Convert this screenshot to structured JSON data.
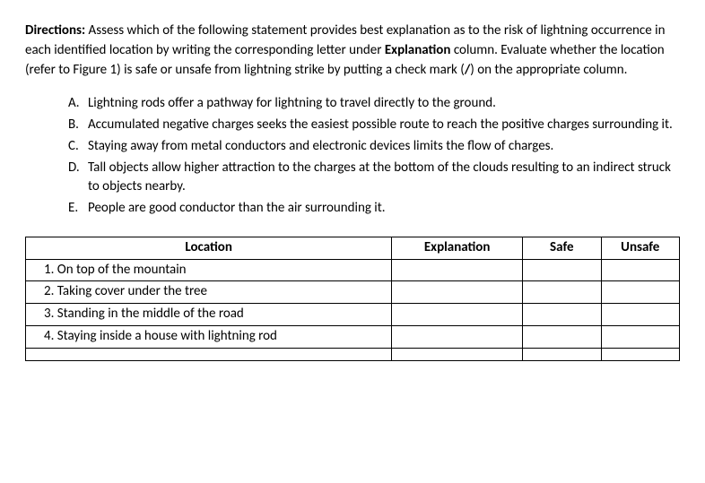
{
  "directions": {
    "label": "Directions:",
    "text_part1": " Assess which of the following statement provides best explanation as to the risk of lightning occurrence in each identified location by writing the corresponding letter under ",
    "explanation_label": "Explanation",
    "text_part2": " column. Evaluate whether the location (refer to Figure 1) is safe or unsafe from lightning strike by putting a check mark (",
    "check_mark": "/",
    "text_part3": ") on the appropriate column."
  },
  "options": [
    {
      "letter": "A.",
      "text": "Lightning rods offer a pathway for lightning to travel directly to the ground."
    },
    {
      "letter": "B.",
      "text": "Accumulated negative charges seeks the easiest possible route to reach the positive charges surrounding it."
    },
    {
      "letter": "C.",
      "text": "Staying away from metal conductors and electronic devices limits the flow of charges."
    },
    {
      "letter": "D.",
      "text": "Tall objects allow higher attraction to the charges at the bottom of the clouds resulting to an indirect struck to objects nearby."
    },
    {
      "letter": "E.",
      "text": "People are good conductor than the air surrounding it."
    }
  ],
  "table": {
    "headers": {
      "location": "Location",
      "explanation": "Explanation",
      "safe": "Safe",
      "unsafe": "Unsafe"
    },
    "rows": [
      {
        "location": "1. On top of the mountain",
        "explanation": "",
        "safe": "",
        "unsafe": ""
      },
      {
        "location": "2. Taking cover under the tree",
        "explanation": "",
        "safe": "",
        "unsafe": ""
      },
      {
        "location": "3. Standing in the middle of the road",
        "explanation": "",
        "safe": "",
        "unsafe": ""
      },
      {
        "location": "4. Staying inside a house with lightning rod",
        "explanation": "",
        "safe": "",
        "unsafe": ""
      }
    ]
  }
}
